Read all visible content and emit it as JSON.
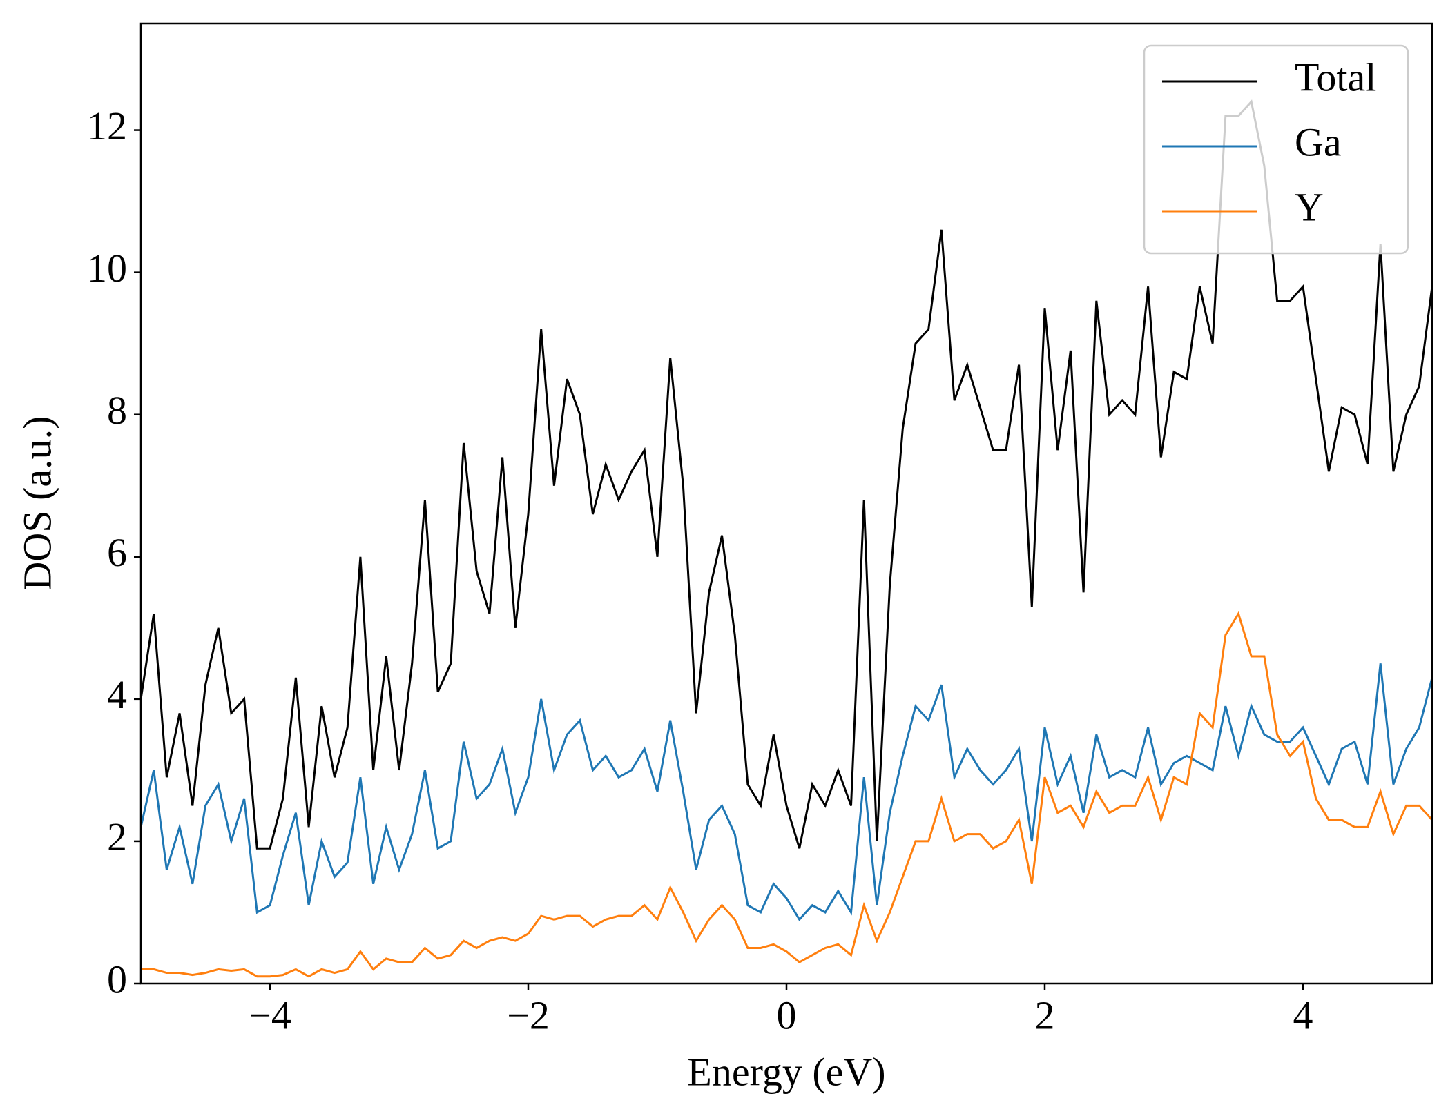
{
  "chart_data": {
    "type": "line",
    "xlabel": "Energy (eV)",
    "ylabel": "DOS (a.u.)",
    "xlim": [
      -5,
      5
    ],
    "ylim": [
      0,
      13.5
    ],
    "xticks": [
      {
        "value": -4,
        "label": "−4"
      },
      {
        "value": -2,
        "label": "−2"
      },
      0,
      2,
      4
    ],
    "yticks": [
      0,
      2,
      4,
      6,
      8,
      10,
      12
    ],
    "legend": "upper right",
    "grid": false,
    "x": [
      -5,
      -4.9,
      -4.8,
      -4.7,
      -4.6,
      -4.5,
      -4.4,
      -4.3,
      -4.2,
      -4.1,
      -4,
      -3.9,
      -3.8,
      -3.7,
      -3.6,
      -3.5,
      -3.4,
      -3.3,
      -3.2,
      -3.1,
      -3,
      -2.9,
      -2.8,
      -2.7,
      -2.6,
      -2.5,
      -2.4,
      -2.3,
      -2.2,
      -2.1,
      -2,
      -1.9,
      -1.8,
      -1.7,
      -1.6,
      -1.5,
      -1.4,
      -1.3,
      -1.2,
      -1.1,
      -1,
      -0.9,
      -0.8,
      -0.7,
      -0.6,
      -0.5,
      -0.4,
      -0.3,
      -0.2,
      -0.1,
      0,
      0.1,
      0.2,
      0.3,
      0.4,
      0.5,
      0.6,
      0.7,
      0.8,
      0.9,
      1,
      1.1,
      1.2,
      1.3,
      1.4,
      1.5,
      1.6,
      1.7,
      1.8,
      1.9,
      2,
      2.1,
      2.2,
      2.3,
      2.4,
      2.5,
      2.6,
      2.7,
      2.8,
      2.9,
      3,
      3.1,
      3.2,
      3.3,
      3.4,
      3.5,
      3.6,
      3.7,
      3.8,
      3.9,
      4,
      4.1,
      4.2,
      4.3,
      4.4,
      4.5,
      4.6,
      4.7,
      4.8,
      4.9,
      5
    ],
    "series": [
      {
        "name": "Total",
        "color": "#000000",
        "values": [
          4.0,
          5.2,
          2.9,
          3.8,
          2.5,
          4.2,
          5.0,
          3.8,
          4.0,
          1.9,
          1.9,
          2.6,
          4.3,
          2.2,
          3.9,
          2.9,
          3.6,
          6.0,
          3.0,
          4.6,
          3.0,
          4.5,
          6.8,
          4.1,
          4.5,
          7.6,
          5.8,
          5.2,
          7.4,
          5.0,
          6.6,
          9.2,
          7.0,
          8.5,
          8.0,
          6.6,
          7.3,
          6.8,
          7.2,
          7.5,
          6.0,
          8.8,
          7.0,
          3.8,
          5.5,
          6.3,
          4.9,
          2.8,
          2.5,
          3.5,
          2.5,
          1.9,
          2.8,
          2.5,
          3.0,
          2.5,
          6.8,
          2.0,
          5.6,
          7.8,
          9.0,
          9.2,
          10.6,
          8.2,
          8.7,
          8.1,
          7.5,
          7.5,
          8.7,
          5.3,
          9.5,
          7.5,
          8.9,
          5.5,
          9.6,
          8.0,
          8.2,
          8.0,
          9.8,
          7.4,
          8.6,
          8.5,
          9.8,
          9.0,
          12.2,
          12.2,
          12.4,
          11.5,
          9.6,
          9.6,
          9.8,
          8.5,
          7.2,
          8.1,
          8.0,
          7.3,
          10.4,
          7.2,
          8.0,
          8.4,
          9.8
        ]
      },
      {
        "name": "Ga",
        "color": "#1f77b4",
        "values": [
          2.2,
          3.0,
          1.6,
          2.2,
          1.4,
          2.5,
          2.8,
          2.0,
          2.6,
          1.0,
          1.1,
          1.8,
          2.4,
          1.1,
          2.0,
          1.5,
          1.7,
          2.9,
          1.4,
          2.2,
          1.6,
          2.1,
          3.0,
          1.9,
          2.0,
          3.4,
          2.6,
          2.8,
          3.3,
          2.4,
          2.9,
          4.0,
          3.0,
          3.5,
          3.7,
          3.0,
          3.2,
          2.9,
          3.0,
          3.3,
          2.7,
          3.7,
          2.7,
          1.6,
          2.3,
          2.5,
          2.1,
          1.1,
          1.0,
          1.4,
          1.2,
          0.9,
          1.1,
          1.0,
          1.3,
          1.0,
          2.9,
          1.1,
          2.4,
          3.2,
          3.9,
          3.7,
          4.2,
          2.9,
          3.3,
          3.0,
          2.8,
          3.0,
          3.3,
          2.0,
          3.6,
          2.8,
          3.2,
          2.4,
          3.5,
          2.9,
          3.0,
          2.9,
          3.6,
          2.8,
          3.1,
          3.2,
          3.1,
          3.0,
          3.9,
          3.2,
          3.9,
          3.5,
          3.4,
          3.4,
          3.6,
          3.2,
          2.8,
          3.3,
          3.4,
          2.8,
          4.5,
          2.8,
          3.3,
          3.6,
          4.3
        ]
      },
      {
        "name": "Y",
        "color": "#ff7f0e",
        "values": [
          0.2,
          0.2,
          0.15,
          0.15,
          0.12,
          0.15,
          0.2,
          0.18,
          0.2,
          0.1,
          0.1,
          0.12,
          0.2,
          0.1,
          0.2,
          0.15,
          0.2,
          0.45,
          0.2,
          0.35,
          0.3,
          0.3,
          0.5,
          0.35,
          0.4,
          0.6,
          0.5,
          0.6,
          0.65,
          0.6,
          0.7,
          0.95,
          0.9,
          0.95,
          0.95,
          0.8,
          0.9,
          0.95,
          0.95,
          1.1,
          0.9,
          1.35,
          1.0,
          0.6,
          0.9,
          1.1,
          0.9,
          0.5,
          0.5,
          0.55,
          0.45,
          0.3,
          0.4,
          0.5,
          0.55,
          0.4,
          1.1,
          0.6,
          1.0,
          1.5,
          2.0,
          2.0,
          2.6,
          2.0,
          2.1,
          2.1,
          1.9,
          2.0,
          2.3,
          1.4,
          2.9,
          2.4,
          2.5,
          2.2,
          2.7,
          2.4,
          2.5,
          2.5,
          2.9,
          2.3,
          2.9,
          2.8,
          3.8,
          3.6,
          4.9,
          5.2,
          4.6,
          4.6,
          3.5,
          3.2,
          3.4,
          2.6,
          2.3,
          2.3,
          2.2,
          2.2,
          2.7,
          2.1,
          2.5,
          2.5,
          2.3
        ]
      }
    ]
  }
}
